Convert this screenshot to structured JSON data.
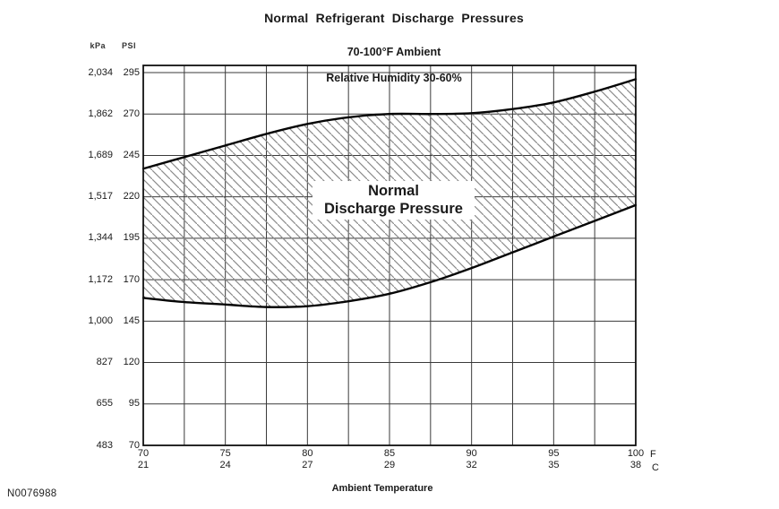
{
  "figure": {
    "title": "Normal  Refrigerant  Discharge  Pressures",
    "subtitle1": "70-100°F Ambient",
    "subtitle2": "Relative Humidity 30-60%",
    "y_unit_left": "kPa",
    "y_unit_right": "PSI",
    "band_label_line1": "Normal",
    "band_label_line2": "Discharge Pressure",
    "x_axis_label": "Ambient Temperature",
    "x_unit_f": "F",
    "x_unit_c": "C",
    "figure_number": "N0076988"
  },
  "chart_data": {
    "type": "area",
    "title": "Normal Refrigerant Discharge Pressures",
    "subtitle": [
      "70-100°F Ambient",
      "Relative Humidity 30-60%"
    ],
    "xlabel": "Ambient Temperature",
    "ylabel_left": "kPa",
    "ylabel_right": "PSI",
    "band_label": "Normal Discharge Pressure",
    "grid": true,
    "xlim_f": [
      70,
      100
    ],
    "x_minor_step_f": 2.5,
    "ylim_psi": [
      70,
      295
    ],
    "x_ticks_f": [
      70,
      75,
      80,
      85,
      90,
      95,
      100
    ],
    "x_ticks_c": [
      21,
      24,
      27,
      29,
      32,
      35,
      38
    ],
    "y_ticks_psi": [
      295,
      270,
      245,
      220,
      195,
      170,
      145,
      120,
      95,
      70
    ],
    "y_ticks_kpa": [
      "2,034",
      "1,862",
      "1,689",
      "1,517",
      "1,344",
      "1,172",
      "1,000",
      "827",
      "655",
      "483"
    ],
    "x_f": [
      70,
      72.5,
      75,
      77.5,
      80,
      82.5,
      85,
      87.5,
      90,
      92.5,
      95,
      97.5,
      100
    ],
    "series": [
      {
        "name": "upper_limit_psi",
        "values": [
          237,
          244,
          251,
          258,
          264,
          268,
          270,
          270,
          270.5,
          273,
          277,
          283.5,
          291
        ]
      },
      {
        "name": "lower_limit_psi",
        "values": [
          159,
          156.5,
          155,
          153.5,
          154,
          157,
          161.5,
          168.5,
          177,
          186.5,
          196,
          205.5,
          215
        ]
      }
    ],
    "colors": {
      "background": "#ffffff",
      "text": "#1a1a1a",
      "grid": "#3a3a3a",
      "border": "#111111",
      "curve": "#050505",
      "hatch": "#8a8a8a"
    }
  }
}
